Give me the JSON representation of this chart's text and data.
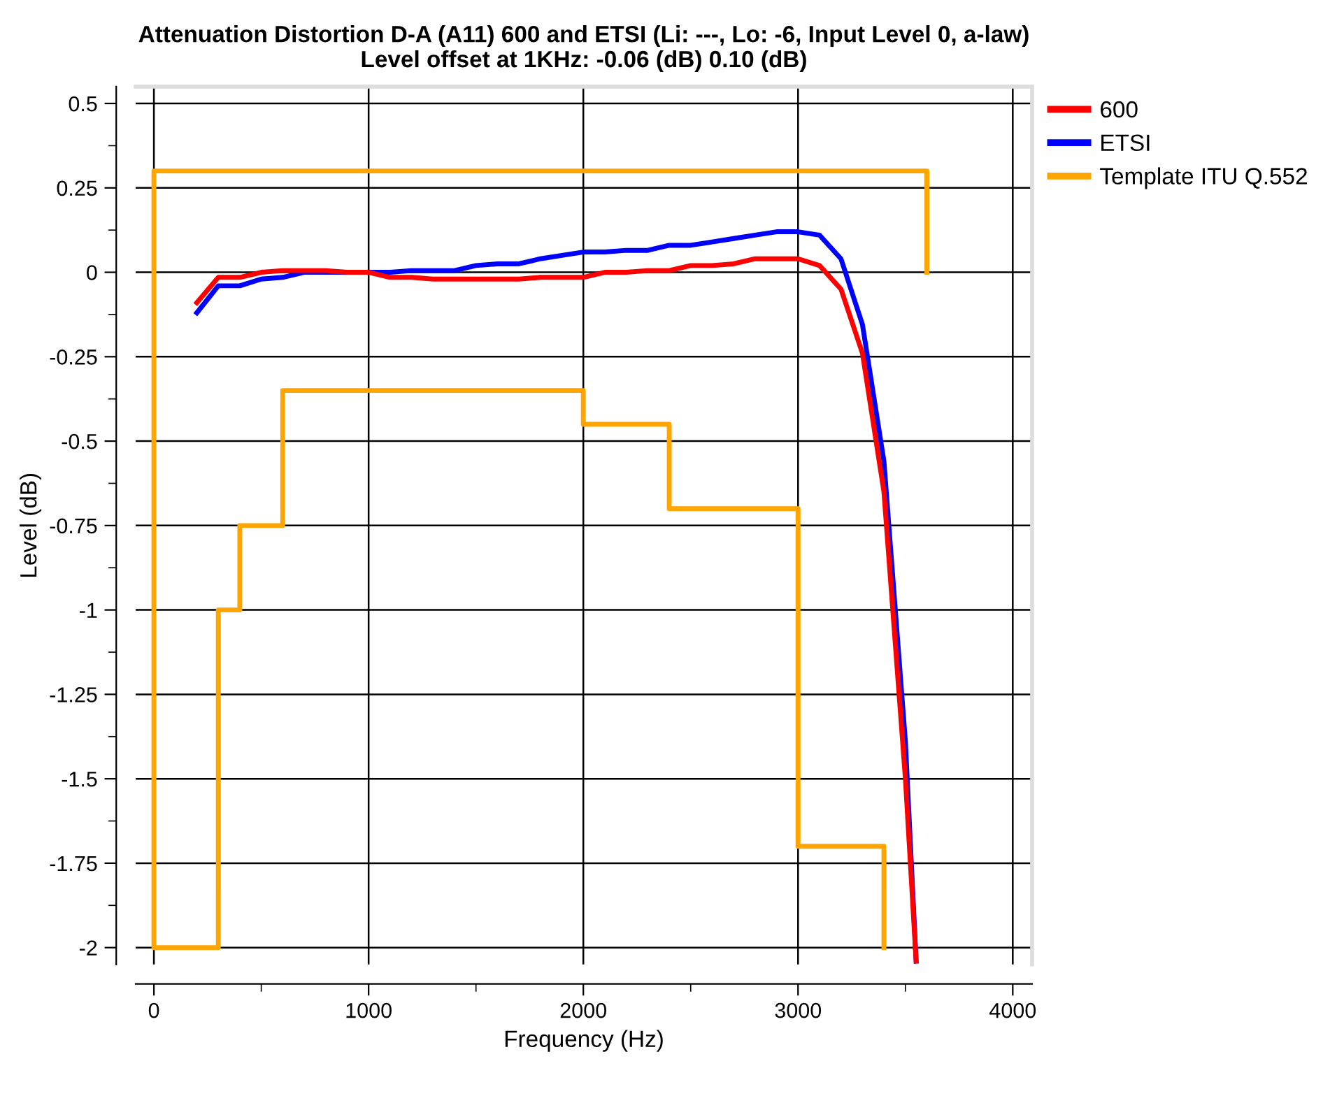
{
  "chart_data": {
    "type": "line",
    "title": "Attenuation Distortion D-A (A11) 600 and ETSI (Li: ---, Lo: -6, Input Level 0, a-law)\nLevel offset at 1KHz: -0.06 (dB) 0.10 (dB)",
    "xlabel": "Frequency (Hz)",
    "ylabel": "Level (dB)",
    "xlim": [
      -85,
      4090
    ],
    "xticks": [
      0,
      1000,
      2000,
      3000,
      4000
    ],
    "ylim": [
      -2.05,
      0.55
    ],
    "yticks": [
      0.5,
      0.25,
      0,
      -0.25,
      -0.5,
      -0.75,
      -1,
      -1.25,
      -1.5,
      -1.75,
      -2
    ],
    "grid": true,
    "legend": "top right",
    "marker": "none",
    "line_style": "solid",
    "series": [
      {
        "name": "600",
        "color": "#ff0000",
        "x": [
          200,
          300,
          400,
          500,
          600,
          700,
          800,
          900,
          1000,
          1100,
          1200,
          1300,
          1400,
          1500,
          1600,
          1700,
          1800,
          1900,
          2000,
          2100,
          2200,
          2300,
          2400,
          2500,
          2600,
          2700,
          2800,
          2900,
          3000,
          3100,
          3200,
          3300,
          3400,
          3500,
          3550
        ],
        "values": [
          -0.09,
          -0.015,
          -0.015,
          0,
          0.005,
          0.005,
          0.005,
          0,
          0,
          -0.015,
          -0.015,
          -0.02,
          -0.02,
          -0.02,
          -0.02,
          -0.02,
          -0.015,
          -0.015,
          -0.015,
          0,
          0,
          0.005,
          0.005,
          0.02,
          0.02,
          0.025,
          0.04,
          0.04,
          0.04,
          0.02,
          -0.05,
          -0.24,
          -0.65,
          -1.5,
          -2.04
        ]
      },
      {
        "name": "ETSI",
        "color": "#0000ff",
        "x": [
          200,
          300,
          400,
          500,
          600,
          700,
          800,
          900,
          1000,
          1100,
          1200,
          1300,
          1400,
          1500,
          1600,
          1700,
          1800,
          1900,
          2000,
          2100,
          2200,
          2300,
          2400,
          2500,
          2600,
          2700,
          2800,
          2900,
          3000,
          3100,
          3200,
          3300,
          3400,
          3500,
          3550
        ],
        "values": [
          -0.12,
          -0.04,
          -0.04,
          -0.02,
          -0.015,
          0,
          0,
          0,
          0,
          0,
          0.005,
          0.005,
          0.005,
          0.02,
          0.025,
          0.025,
          0.04,
          0.05,
          0.06,
          0.06,
          0.065,
          0.065,
          0.08,
          0.08,
          0.09,
          0.1,
          0.11,
          0.12,
          0.12,
          0.11,
          0.04,
          -0.155,
          -0.56,
          -1.39,
          -2.04
        ]
      },
      {
        "name": "Template ITU Q.552",
        "color": "#ffa500",
        "x": [
          3400,
          3400,
          3000,
          3000,
          2400,
          2400,
          2000,
          2000,
          600,
          600,
          400,
          400,
          300,
          300,
          0,
          0,
          3600,
          3600
        ],
        "values": [
          -2,
          -1.7,
          -1.7,
          -0.7,
          -0.7,
          -0.45,
          -0.45,
          -0.35,
          -0.35,
          -0.75,
          -0.75,
          -1,
          -1,
          -2,
          -2,
          0.3,
          0.3,
          0
        ]
      }
    ]
  }
}
